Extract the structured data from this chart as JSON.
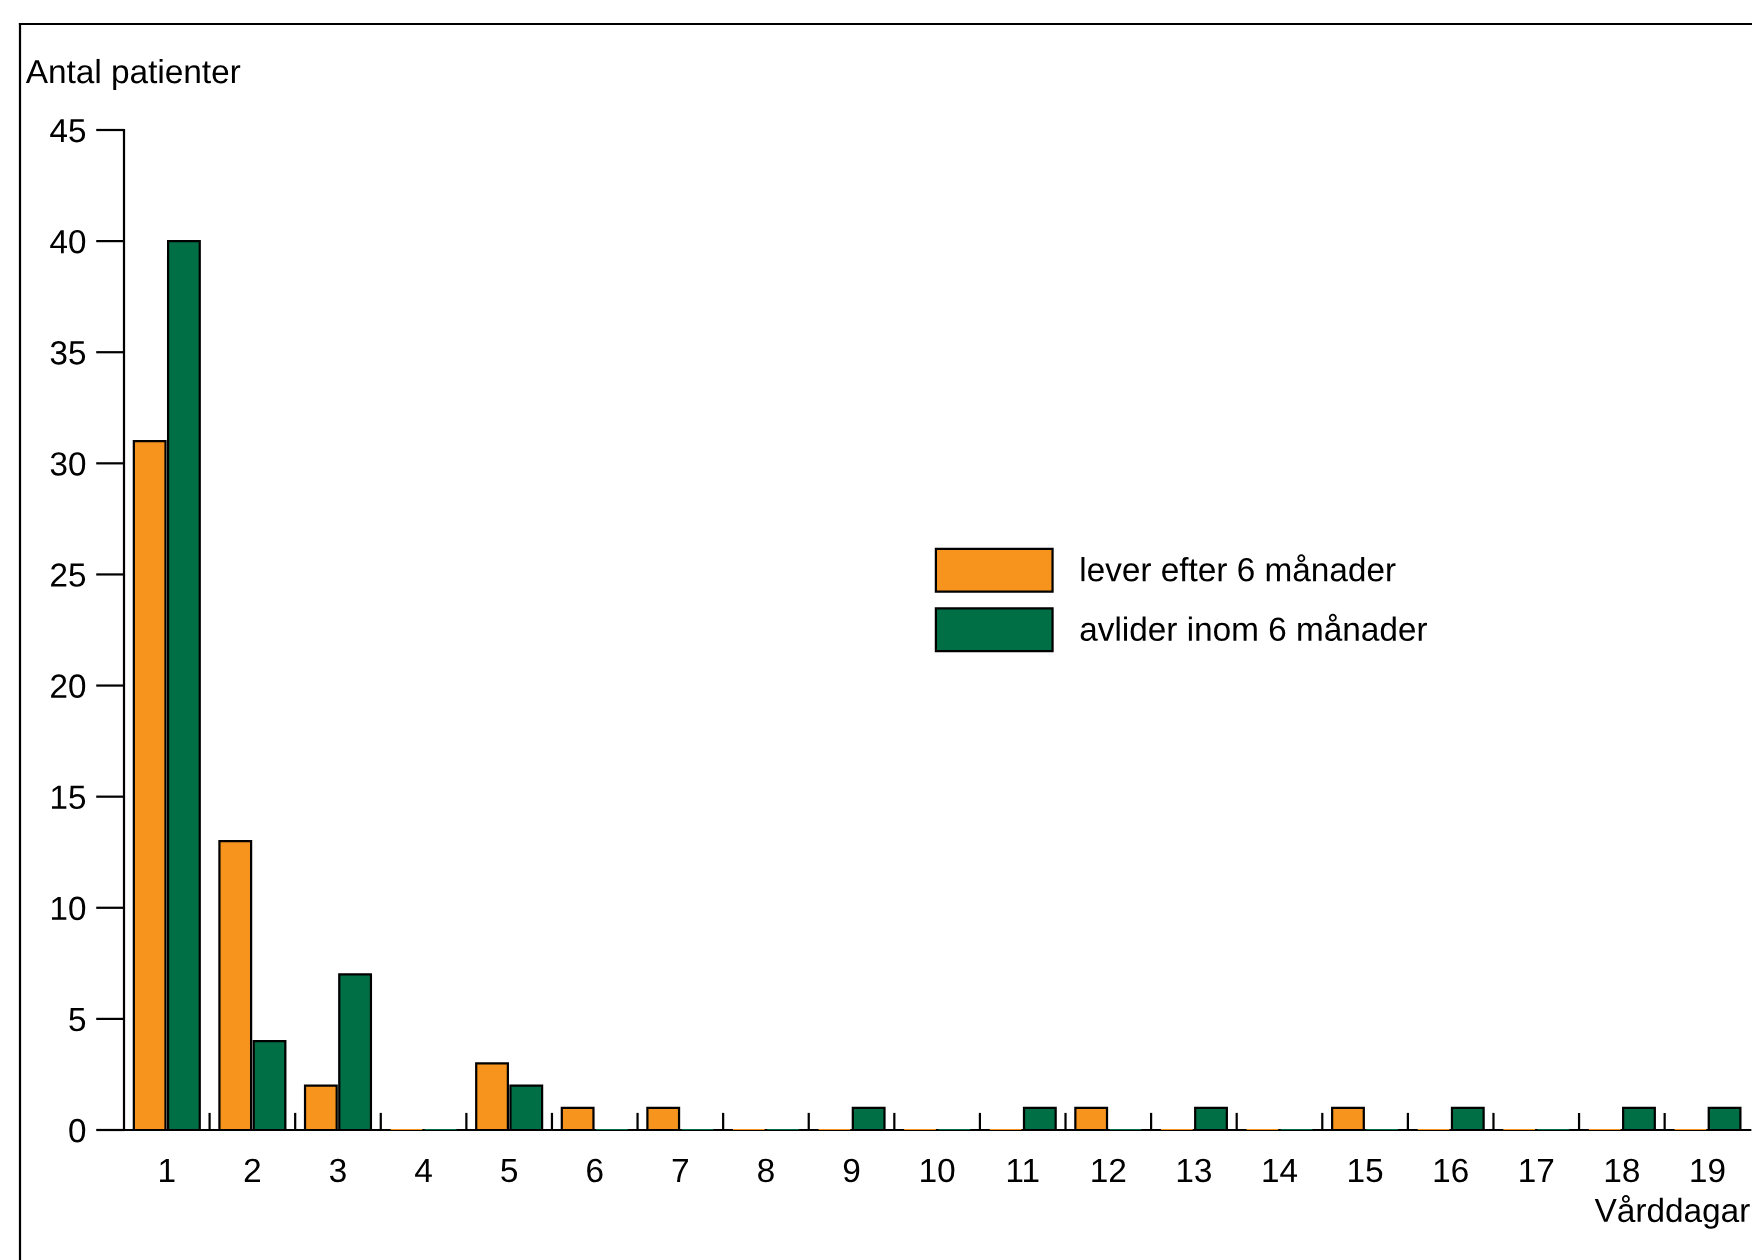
{
  "chart_data": {
    "type": "bar",
    "xlabel": "Vårddagar",
    "ylabel": "Antal patienter",
    "categories": [
      "1",
      "2",
      "3",
      "4",
      "5",
      "6",
      "7",
      "8",
      "9",
      "10",
      "11",
      "12",
      "13",
      "14",
      "15",
      "16",
      "17",
      "18",
      "19"
    ],
    "series": [
      {
        "name": "lever efter 6 månader",
        "color": "#f7941d",
        "values": [
          31,
          13,
          2,
          0,
          3,
          1,
          1,
          0,
          0,
          0,
          0,
          1,
          0,
          0,
          1,
          0,
          0,
          0,
          0
        ]
      },
      {
        "name": "avlider inom 6 månader",
        "color": "#006f45",
        "values": [
          40,
          4,
          7,
          0,
          2,
          0,
          0,
          0,
          1,
          0,
          1,
          0,
          1,
          0,
          0,
          1,
          0,
          1,
          1
        ]
      }
    ],
    "ylim": [
      0,
      45
    ],
    "yticks": [
      0,
      5,
      10,
      15,
      20,
      25,
      30,
      35,
      40,
      45
    ],
    "grid": false,
    "legend": "right"
  }
}
